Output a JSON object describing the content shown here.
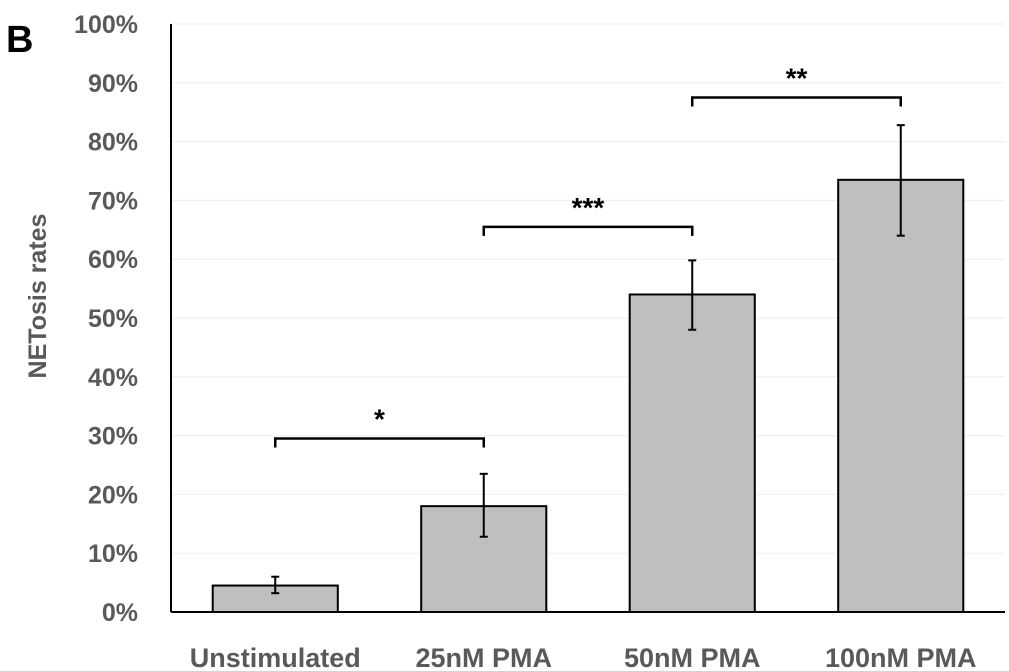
{
  "panel_label": "B",
  "chart_data": {
    "type": "bar",
    "title": "",
    "xlabel": "",
    "ylabel": "NETosis rates",
    "categories": [
      "Unstimulated",
      "25nM PMA",
      "50nM PMA",
      "100nM PMA"
    ],
    "values": [
      4.5,
      18.0,
      54.0,
      73.5
    ],
    "error_lower": [
      3.2,
      12.8,
      48.0,
      64.0
    ],
    "error_upper": [
      6.0,
      23.5,
      59.8,
      82.8
    ],
    "ylim": [
      0,
      100
    ],
    "y_ticks": [
      0,
      10,
      20,
      30,
      40,
      50,
      60,
      70,
      80,
      90,
      100
    ],
    "y_tick_labels": [
      "0%",
      "10%",
      "20%",
      "30%",
      "40%",
      "50%",
      "60%",
      "70%",
      "80%",
      "90%",
      "100%"
    ],
    "grid": true,
    "bar_color": "#bfbfbf",
    "bar_edge_color": "#000000",
    "significance": [
      {
        "from": 0,
        "to": 1,
        "label": "*",
        "level": 29.5
      },
      {
        "from": 1,
        "to": 2,
        "label": "***",
        "level": 65.5
      },
      {
        "from": 2,
        "to": 3,
        "label": "**",
        "level": 87.5
      }
    ]
  }
}
